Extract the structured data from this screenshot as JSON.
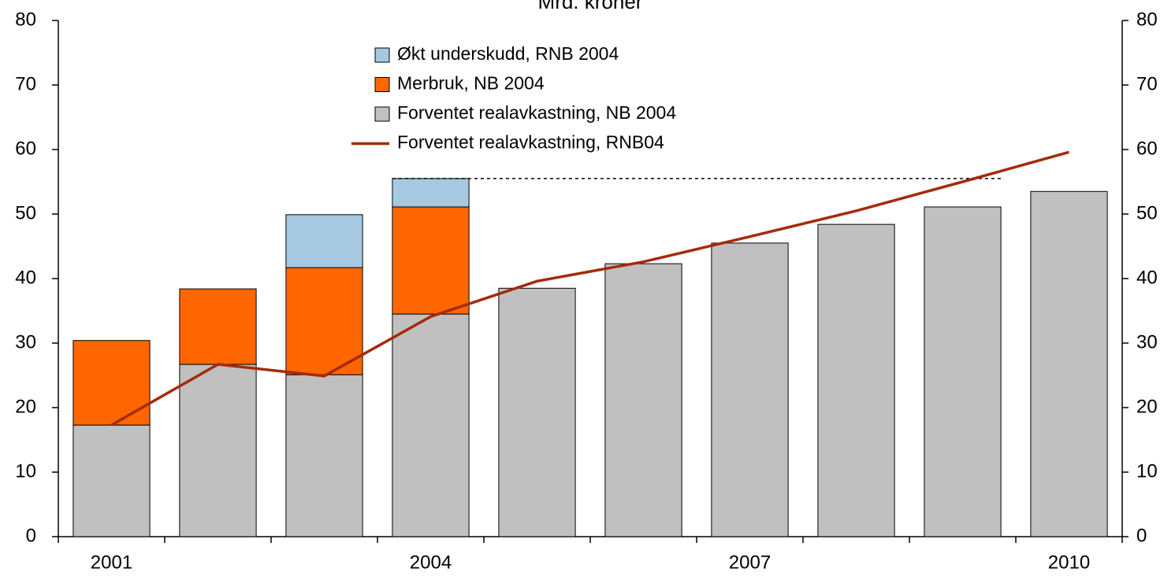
{
  "chart_data": {
    "type": "bar",
    "title": "Mrd. kroner",
    "stacked": true,
    "categories": [
      "2001",
      null,
      null,
      "2004",
      null,
      null,
      "2007",
      null,
      null,
      "2010"
    ],
    "series": [
      {
        "name": "Forventet realavkastning, NB 2004",
        "color": "#c0c0c0",
        "type": "bar",
        "values": [
          17.3,
          26.7,
          25.1,
          34.5,
          38.5,
          42.3,
          45.5,
          48.4,
          51.1,
          53.5
        ]
      },
      {
        "name": "Merbruk, NB 2004",
        "color": "#ff6600",
        "type": "bar",
        "values": [
          13.1,
          11.7,
          16.6,
          16.6,
          null,
          null,
          null,
          null,
          null,
          null
        ]
      },
      {
        "name": "Økt underskudd, RNB 2004",
        "color": "#a6c8e0",
        "type": "bar",
        "values": [
          null,
          null,
          8.2,
          4.4,
          null,
          null,
          null,
          null,
          null,
          null
        ]
      },
      {
        "name": "Forventet realavkastning, RNB04",
        "color": "#a52a0a",
        "type": "line",
        "values": [
          17.3,
          26.7,
          24.9,
          34.1,
          39.6,
          42.6,
          46.5,
          50.5,
          55.0,
          59.6
        ]
      }
    ],
    "ylim": [
      0,
      80
    ],
    "yticks": [
      0,
      10,
      20,
      30,
      40,
      50,
      60,
      70,
      80
    ],
    "y2lim": [
      0,
      80
    ],
    "y2ticks": [
      0,
      10,
      20,
      30,
      40,
      50,
      60,
      70,
      80
    ]
  }
}
